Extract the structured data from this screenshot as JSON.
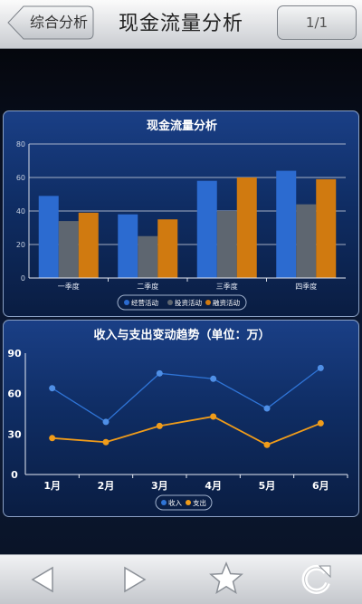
{
  "header": {
    "back_label": "综合分析",
    "title": "现金流量分析",
    "page_indicator": "1/1"
  },
  "chart_data": [
    {
      "type": "bar",
      "title": "现金流量分析",
      "categories": [
        "一季度",
        "二季度",
        "三季度",
        "四季度"
      ],
      "series": [
        {
          "name": "经营活动",
          "values": [
            49,
            38,
            58,
            64
          ],
          "color": "#2c6bd0"
        },
        {
          "name": "投资活动",
          "values": [
            34,
            25,
            40,
            44
          ],
          "color": "#5e6670"
        },
        {
          "name": "融资活动",
          "values": [
            39,
            35,
            60,
            59
          ],
          "color": "#d07a10"
        }
      ],
      "ylim": [
        0,
        80
      ],
      "yticks": [
        0,
        20,
        40,
        60,
        80
      ],
      "grid": true,
      "legend": "bottom"
    },
    {
      "type": "line",
      "title": "收入与支出变动趋势（单位：万）",
      "categories": [
        "1月",
        "2月",
        "3月",
        "4月",
        "5月",
        "6月"
      ],
      "series": [
        {
          "name": "收入",
          "values": [
            64,
            39,
            75,
            71,
            49,
            79
          ],
          "color": "#2f74d6"
        },
        {
          "name": "支出",
          "values": [
            27,
            24,
            36,
            43,
            22,
            38
          ],
          "color": "#f09c1a"
        }
      ],
      "ylim": [
        0,
        90
      ],
      "yticks": [
        0,
        30,
        60,
        90
      ],
      "grid": false,
      "legend": "bottom"
    }
  ],
  "footer": {
    "icons": [
      "back-arrow-icon",
      "forward-arrow-icon",
      "star-icon",
      "refresh-icon"
    ]
  }
}
